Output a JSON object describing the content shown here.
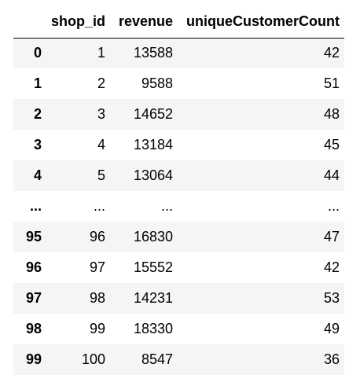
{
  "table": {
    "columns": [
      "",
      "shop_id",
      "revenue",
      "uniqueCustomerCount"
    ],
    "rows": [
      {
        "index": "0",
        "shop_id": "1",
        "revenue": "13588",
        "uniqueCustomerCount": "42"
      },
      {
        "index": "1",
        "shop_id": "2",
        "revenue": "9588",
        "uniqueCustomerCount": "51"
      },
      {
        "index": "2",
        "shop_id": "3",
        "revenue": "14652",
        "uniqueCustomerCount": "48"
      },
      {
        "index": "3",
        "shop_id": "4",
        "revenue": "13184",
        "uniqueCustomerCount": "45"
      },
      {
        "index": "4",
        "shop_id": "5",
        "revenue": "13064",
        "uniqueCustomerCount": "44"
      },
      {
        "index": "...",
        "shop_id": "...",
        "revenue": "...",
        "uniqueCustomerCount": "..."
      },
      {
        "index": "95",
        "shop_id": "96",
        "revenue": "16830",
        "uniqueCustomerCount": "47"
      },
      {
        "index": "96",
        "shop_id": "97",
        "revenue": "15552",
        "uniqueCustomerCount": "42"
      },
      {
        "index": "97",
        "shop_id": "98",
        "revenue": "14231",
        "uniqueCustomerCount": "53"
      },
      {
        "index": "98",
        "shop_id": "99",
        "revenue": "18330",
        "uniqueCustomerCount": "49"
      },
      {
        "index": "99",
        "shop_id": "100",
        "revenue": "8547",
        "uniqueCustomerCount": "36"
      }
    ]
  }
}
